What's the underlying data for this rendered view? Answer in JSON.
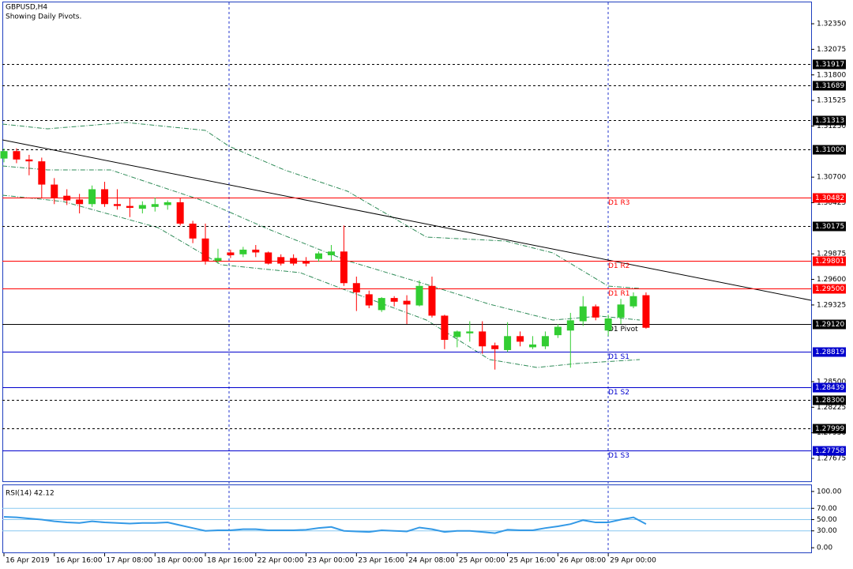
{
  "chart_data": [
    {
      "type": "candlestick",
      "title": "GBPUSD,H4",
      "subtitle": "Showing Daily Pivots.",
      "categories": [
        "16 Apr 2019",
        null,
        null,
        null,
        "16 Apr 16:00",
        null,
        null,
        null,
        "17 Apr 08:00",
        null,
        null,
        null,
        "18 Apr 00:00",
        null,
        null,
        null,
        "18 Apr 16:00",
        null,
        null,
        null,
        "22 Apr 00:00",
        null,
        null,
        null,
        "23 Apr 00:00",
        null,
        null,
        null,
        "23 Apr 16:00",
        null,
        null,
        null,
        "24 Apr 08:00",
        null,
        null,
        null,
        "25 Apr 00:00",
        null,
        null,
        null,
        "25 Apr 16:00",
        null,
        null,
        null,
        "26 Apr 08:00",
        null,
        null,
        null,
        "29 Apr 00:00",
        null,
        null,
        null
      ],
      "open": [
        1.309,
        1.3098,
        1.3089,
        1.3087,
        1.3062,
        1.305,
        1.3046,
        1.3041,
        1.3057,
        1.3041,
        1.3039,
        1.3036,
        1.3038,
        1.304,
        1.3043,
        1.302,
        1.3004,
        1.298,
        1.2989,
        1.2987,
        1.2992,
        1.2989,
        1.2984,
        1.2983,
        1.298,
        1.2982,
        1.2986,
        1.299,
        1.2956,
        1.2944,
        1.2927,
        1.294,
        1.2937,
        1.2932,
        1.2953,
        1.2921,
        1.2898,
        1.2902,
        1.2904,
        1.2889,
        1.2884,
        1.2899,
        1.2887,
        1.2888,
        1.29,
        1.2905,
        1.2915,
        1.2931,
        1.2905,
        1.2919,
        1.2931,
        1.2943
      ],
      "high": [
        1.3101,
        1.3101,
        1.3094,
        1.3091,
        1.3069,
        1.3057,
        1.3052,
        1.3061,
        1.3065,
        1.3057,
        1.3048,
        1.3044,
        1.3048,
        1.3045,
        1.3048,
        1.3023,
        1.302,
        1.2993,
        1.2992,
        1.2995,
        1.2997,
        1.299,
        1.2987,
        1.2987,
        1.2984,
        1.299,
        1.2997,
        1.3018,
        1.2963,
        1.2948,
        1.2941,
        1.2942,
        1.2943,
        1.2959,
        1.2963,
        1.2922,
        1.2905,
        1.2915,
        1.2915,
        1.2892,
        1.2914,
        1.2904,
        1.2899,
        1.2904,
        1.2912,
        1.2924,
        1.2942,
        1.2933,
        1.2922,
        1.2939,
        1.2946,
        1.2946
      ],
      "low": [
        1.3086,
        1.3085,
        1.3072,
        1.3048,
        1.3041,
        1.304,
        1.3031,
        1.3038,
        1.3038,
        1.3035,
        1.3027,
        1.3031,
        1.3033,
        1.3035,
        1.3018,
        1.2999,
        1.2976,
        1.2977,
        1.2983,
        1.2984,
        1.2984,
        1.2976,
        1.2975,
        1.2975,
        1.2974,
        1.2979,
        1.298,
        1.2953,
        1.2926,
        1.2929,
        1.2925,
        1.2931,
        1.2912,
        1.2931,
        1.2919,
        1.2885,
        1.2887,
        1.2893,
        1.288,
        1.2863,
        1.2882,
        1.2888,
        1.2885,
        1.2885,
        1.2897,
        1.2865,
        1.291,
        1.2916,
        1.2899,
        1.2912,
        1.2929,
        1.2907
      ],
      "close": [
        1.3098,
        1.3089,
        1.3087,
        1.3062,
        1.3048,
        1.3045,
        1.3041,
        1.3057,
        1.3041,
        1.3039,
        1.3037,
        1.304,
        1.3041,
        1.3043,
        1.302,
        1.3004,
        1.298,
        1.2983,
        1.2986,
        1.2992,
        1.2989,
        1.2977,
        1.2977,
        1.2977,
        1.2977,
        1.2988,
        1.299,
        1.2956,
        1.2946,
        1.2932,
        1.294,
        1.2936,
        1.2933,
        1.2953,
        1.2921,
        1.2895,
        1.2904,
        1.2904,
        1.2888,
        1.2885,
        1.2899,
        1.2893,
        1.289,
        1.2899,
        1.2909,
        1.2916,
        1.2931,
        1.2919,
        1.2918,
        1.2933,
        1.2942,
        1.2908
      ],
      "up_color": "#32cd32",
      "down_color": "#ff0000",
      "ylim": [
        1.2742,
        1.3258
      ],
      "yticks": [
        {
          "value": 1.3235,
          "label": "1.32350"
        },
        {
          "value": 1.32075,
          "label": "1.32075"
        },
        {
          "value": 1.318,
          "label": "1.31800"
        },
        {
          "value": 1.31525,
          "label": "1.31525"
        },
        {
          "value": 1.3125,
          "label": "1.31250"
        },
        {
          "value": 1.307,
          "label": "1.30700"
        },
        {
          "value": 1.30425,
          "label": "1.30425"
        },
        {
          "value": 1.29875,
          "label": "1.29875"
        },
        {
          "value": 1.296,
          "label": "1.29600"
        },
        {
          "value": 1.29325,
          "label": "1.29325"
        },
        {
          "value": 1.285,
          "label": "1.28500"
        },
        {
          "value": 1.28225,
          "label": "1.28225"
        },
        {
          "value": 1.2795,
          "label": "1.27950"
        },
        {
          "value": 1.27675,
          "label": "1.27675"
        }
      ],
      "levels": [
        {
          "value": 1.31917,
          "value_label": "1.31917",
          "color": "#000000",
          "style": "dashed"
        },
        {
          "value": 1.31689,
          "value_label": "1.31689",
          "color": "#000000",
          "style": "dashed"
        },
        {
          "value": 1.31313,
          "value_label": "1.31313",
          "color": "#000000",
          "style": "dashed"
        },
        {
          "value": 1.31,
          "value_label": "1.31000",
          "color": "#000000",
          "style": "dashed"
        },
        {
          "name": "D1 R3",
          "value": 1.30482,
          "value_label": "1.30482",
          "color": "#ff0000",
          "style": "solid"
        },
        {
          "value": 1.30175,
          "value_label": "1.30175",
          "color": "#000000",
          "style": "dashed"
        },
        {
          "name": "D1 R2",
          "value": 1.29801,
          "value_label": "1.29801",
          "color": "#ff0000",
          "style": "solid"
        },
        {
          "name": "D1 R1",
          "value": 1.295,
          "value_label": "1.29500",
          "color": "#ff0000",
          "style": "solid"
        },
        {
          "name": "D1 Pivot",
          "value": 1.2912,
          "value_label": "1.29120",
          "color": "#000000",
          "style": "solid"
        },
        {
          "name": "D1 S1",
          "value": 1.28819,
          "value_label": "1.28819",
          "color": "#0000cd",
          "style": "solid"
        },
        {
          "name": "D1 S2",
          "value": 1.28439,
          "value_label": "1.28439",
          "color": "#0000cd",
          "style": "solid"
        },
        {
          "value": 1.283,
          "value_label": "1.28300",
          "color": "#000000",
          "style": "dashed"
        },
        {
          "value": 1.27999,
          "value_label": "1.27999",
          "color": "#000000",
          "style": "dashed"
        },
        {
          "name": "D1 S3",
          "value": 1.27758,
          "value_label": "1.27758",
          "color": "#0000cd",
          "style": "solid"
        }
      ]
    },
    {
      "type": "line",
      "title": "RSI(14) 42.12",
      "series": [
        {
          "name": "RSI(14)",
          "color": "#3399e6",
          "values": [
            55,
            54,
            52,
            50,
            47,
            45,
            44,
            47,
            45,
            44,
            43,
            44,
            44,
            45,
            40,
            35,
            30,
            31,
            31,
            33,
            33,
            31,
            31,
            31,
            32,
            35,
            37,
            30,
            29,
            28,
            31,
            30,
            29,
            36,
            33,
            28,
            30,
            30,
            28,
            26,
            32,
            31,
            31,
            35,
            38,
            42,
            49,
            45,
            45,
            50,
            54,
            42.12
          ]
        }
      ],
      "ylim": [
        -9.7,
        111.1
      ],
      "yticks": [
        {
          "value": 100,
          "label": "100.00"
        },
        {
          "value": 70,
          "label": "70.00"
        },
        {
          "value": 50,
          "label": "50.00"
        },
        {
          "value": 30,
          "label": "30.00"
        },
        {
          "value": 0,
          "label": "0.00"
        }
      ],
      "levels": [
        70,
        50,
        30
      ],
      "level_color": "#87c8f0"
    }
  ]
}
